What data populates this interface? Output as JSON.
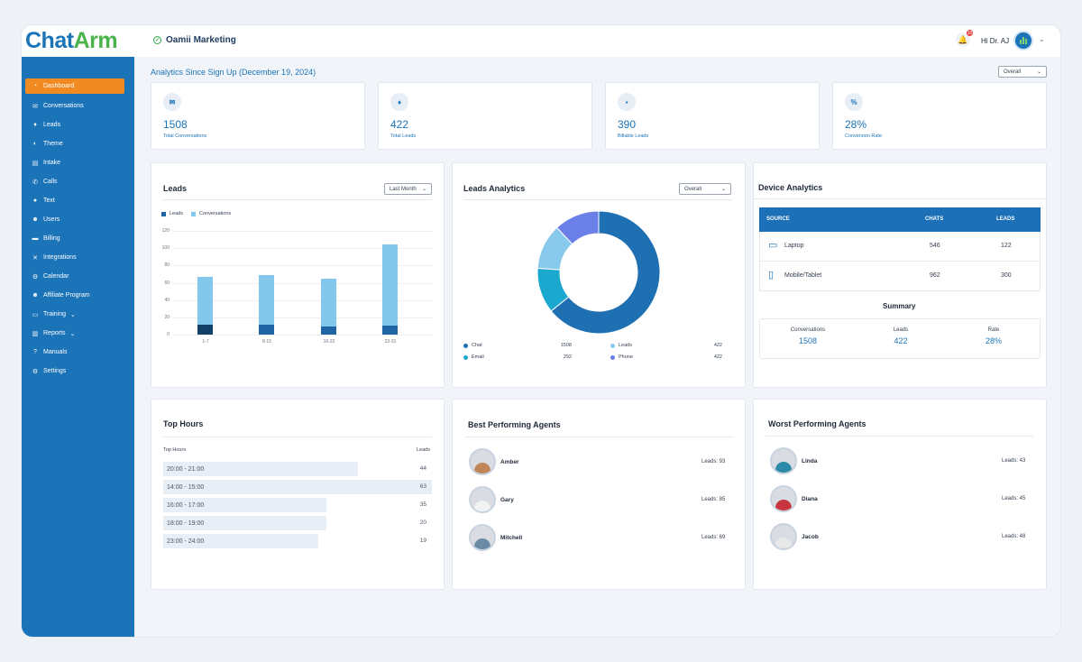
{
  "brand": {
    "logo_part1": "Chat",
    "logo_part2": "Arm",
    "org_name": "Oamii Marketing"
  },
  "header": {
    "greeting": "Hi Dr. AJ",
    "notification_count": "10"
  },
  "sidebar": {
    "items": [
      {
        "label": "Dashboard",
        "icon": "dashboard-icon",
        "glyph": "◔",
        "active": true
      },
      {
        "label": "Conversations",
        "icon": "conversations-icon",
        "glyph": "✉"
      },
      {
        "label": "Leads",
        "icon": "leads-icon",
        "glyph": "♦"
      },
      {
        "label": "Theme",
        "icon": "theme-icon",
        "glyph": "◐"
      },
      {
        "label": "Intake",
        "icon": "intake-icon",
        "glyph": "▤"
      },
      {
        "label": "Calls",
        "icon": "calls-icon",
        "glyph": "✆"
      },
      {
        "label": "Text",
        "icon": "text-icon",
        "glyph": "●"
      },
      {
        "label": "Users",
        "icon": "users-icon",
        "glyph": "☻"
      },
      {
        "label": "Billing",
        "icon": "billing-icon",
        "glyph": "▬"
      },
      {
        "label": "Integrations",
        "icon": "integrations-icon",
        "glyph": "✕"
      },
      {
        "label": "Calendar",
        "icon": "calendar-icon",
        "glyph": "⚙"
      },
      {
        "label": "Affiliate Program",
        "icon": "affiliate-icon",
        "glyph": "☻"
      },
      {
        "label": "Training",
        "icon": "training-icon",
        "glyph": "▭",
        "caret": "⌄"
      },
      {
        "label": "Reports",
        "icon": "reports-icon",
        "glyph": "▥",
        "caret": "⌄"
      },
      {
        "label": "Manuals",
        "icon": "manuals-icon",
        "glyph": "?"
      },
      {
        "label": "Settings",
        "icon": "settings-icon",
        "glyph": "⚙"
      }
    ]
  },
  "main": {
    "title": "Analytics Since Sign Up (December 19, 2024)",
    "filter": "Overall"
  },
  "stats": [
    {
      "value": "1508",
      "label": "Total Conversations",
      "icon": "chat-bubbles-icon",
      "glyph": "✉"
    },
    {
      "value": "422",
      "label": "Total Leads",
      "icon": "leads-icon",
      "glyph": "♦"
    },
    {
      "value": "390",
      "label": "Billable Leads",
      "icon": "billable-icon",
      "glyph": "▪"
    },
    {
      "value": "28%",
      "label": "Conversion Rate",
      "icon": "percent-icon",
      "glyph": "%"
    }
  ],
  "leads_chart": {
    "title": "Leads",
    "filter": "Last Month",
    "chart_data": {
      "type": "bar",
      "categories": [
        "1-7",
        "8-15",
        "16-22",
        "23-31"
      ],
      "series": [
        {
          "name": "Leads",
          "values": [
            11,
            12,
            9,
            10
          ]
        },
        {
          "name": "Conversations",
          "values": [
            67,
            69,
            65,
            104
          ]
        }
      ],
      "yticks": [
        "0",
        "20",
        "40",
        "60",
        "80",
        "100",
        "120"
      ],
      "ylim": [
        0,
        120
      ],
      "colors": [
        "#1f65a6",
        "#84c7ec"
      ]
    }
  },
  "leads_analytics": {
    "title": "Leads Analytics",
    "filter": "Overall",
    "chart_data": {
      "type": "pie",
      "labels": [
        "Chat",
        "Email",
        "Leads",
        "Phone"
      ],
      "slice_values": [
        59,
        11,
        11,
        11
      ],
      "legend_values": [
        "1508",
        "292",
        "422",
        "422"
      ],
      "colors": [
        "#1f6fb3",
        "#1aa8cf",
        "#88c9ec",
        "#6b7fe8"
      ]
    }
  },
  "device": {
    "title": "Device Analytics",
    "headers": [
      "SOURCE",
      "CHATS",
      "LEADS"
    ],
    "rows": [
      {
        "source": "Laptop",
        "chats": "546",
        "leads": "122",
        "icon": "laptop-icon",
        "glyph": "▭"
      },
      {
        "source": "Mobile/Tablet",
        "chats": "962",
        "leads": "300",
        "icon": "mobile-tablet-icon",
        "glyph": "▯"
      }
    ],
    "summary_title": "Summary",
    "summary": [
      {
        "label": "Conversations",
        "value": "1508"
      },
      {
        "label": "Leads",
        "value": "422"
      },
      {
        "label": "Rate",
        "value": "28%"
      }
    ]
  },
  "top_hours": {
    "title": "Top Hours",
    "col_left": "Top Hours",
    "col_right": "Leads",
    "rows": [
      {
        "label": "20:00 - 21:00",
        "value": "44"
      },
      {
        "label": "14:00 - 15:00",
        "value": "63"
      },
      {
        "label": "16:00 - 17:00",
        "value": "35"
      },
      {
        "label": "18:00 - 19:00",
        "value": "20"
      },
      {
        "label": "23:00 - 24:00",
        "value": "19"
      }
    ]
  },
  "best_agents": {
    "title": "Best Performing Agents",
    "agents": [
      {
        "name": "Amber",
        "leads": "Leads: 93",
        "shirt": "#c0865a"
      },
      {
        "name": "Gary",
        "leads": "Leads: 85",
        "shirt": "#f2f2f2"
      },
      {
        "name": "Mitchell",
        "leads": "Leads: 69",
        "shirt": "#6b8aa6"
      }
    ]
  },
  "worst_agents": {
    "title": "Worst Performing Agents",
    "agents": [
      {
        "name": "Linda",
        "leads": "Leads: 43",
        "shirt": "#2a8aa8"
      },
      {
        "name": "Diana",
        "leads": "Leads: 45",
        "shirt": "#c8353f"
      },
      {
        "name": "Jacob",
        "leads": "Leads: 48",
        "shirt": "#e8e8e8"
      }
    ]
  }
}
